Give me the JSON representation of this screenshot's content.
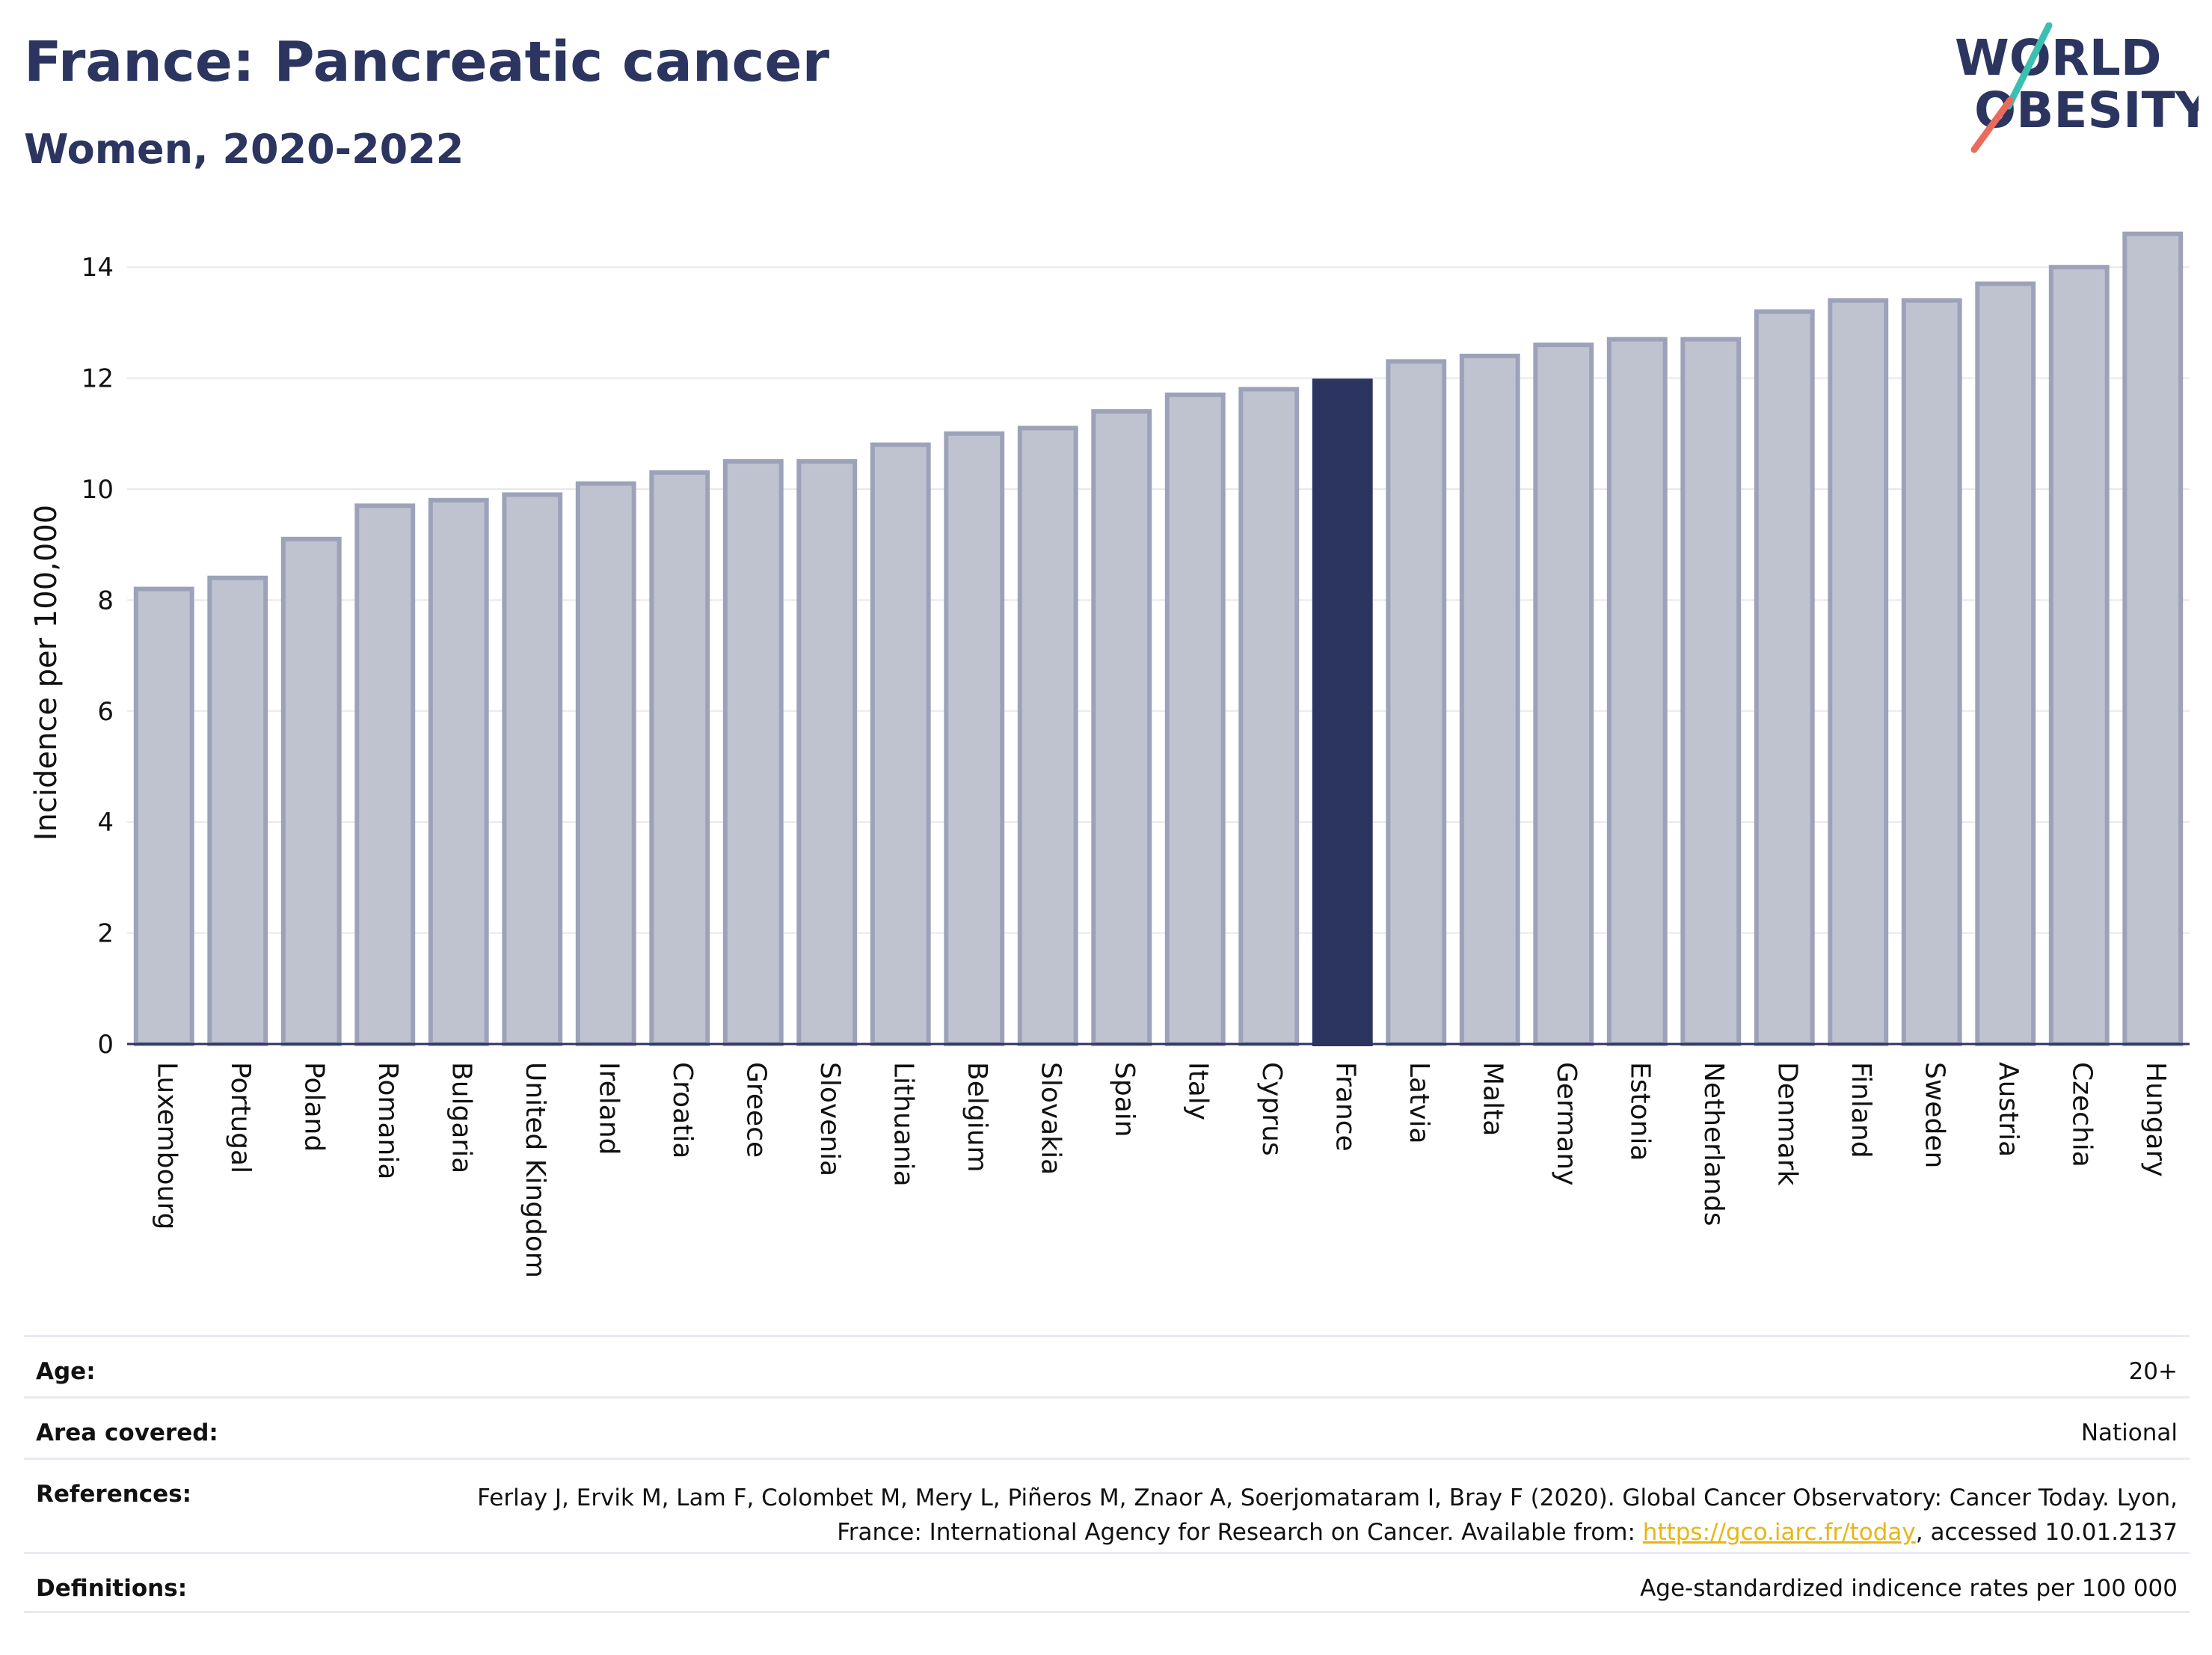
{
  "header": {
    "title": "France: Pancreatic cancer",
    "subtitle": "Women, 2020-2022"
  },
  "logo": {
    "line1": "WORLD",
    "line2": "OBESITY"
  },
  "colors": {
    "highlight": "#2b3560",
    "bar_fill": "#bfc3d0",
    "bar_stroke": "#9ca2b9",
    "grid": "#e6e8ee",
    "logo_teal": "#3bbfb0",
    "logo_coral": "#ec6a5c",
    "link": "#e8b516"
  },
  "chart_data": {
    "type": "bar",
    "ylabel": "Incidence per 100,000",
    "xlabel": "",
    "ylim": [
      0,
      15
    ],
    "yticks": [
      0,
      2,
      4,
      6,
      8,
      10,
      12,
      14
    ],
    "grid": true,
    "highlight": "France",
    "categories": [
      "Luxembourg",
      "Portugal",
      "Poland",
      "Romania",
      "Bulgaria",
      "United Kingdom",
      "Ireland",
      "Croatia",
      "Greece",
      "Slovenia",
      "Lithuania",
      "Belgium",
      "Slovakia",
      "Spain",
      "Italy",
      "Cyprus",
      "France",
      "Latvia",
      "Malta",
      "Germany",
      "Estonia",
      "Netherlands",
      "Denmark",
      "Finland",
      "Sweden",
      "Austria",
      "Czechia",
      "Hungary"
    ],
    "values": [
      8.2,
      8.4,
      9.1,
      9.7,
      9.8,
      9.9,
      10.1,
      10.3,
      10.5,
      10.5,
      10.8,
      11.0,
      11.1,
      11.4,
      11.7,
      11.8,
      11.95,
      12.3,
      12.4,
      12.6,
      12.7,
      12.7,
      13.2,
      13.4,
      13.4,
      13.7,
      14.0,
      14.6
    ]
  },
  "meta": {
    "age_label": "Age:",
    "age_value": "20+",
    "area_label": "Area covered:",
    "area_value": "National",
    "references_label": "References:",
    "references_text": "Ferlay J, Ervik M, Lam F, Colombet M, Mery L, Piñeros M, Znaor A, Soerjomataram I, Bray F (2020). Global Cancer Observatory: Cancer Today. Lyon, France: International Agency for Research on Cancer. Available from: ",
    "references_link": "https://gco.iarc.fr/today",
    "references_tail": ", accessed 10.01.2137",
    "definitions_label": "Definitions:",
    "definitions_value": "Age-standardized indicence rates per 100 000"
  }
}
